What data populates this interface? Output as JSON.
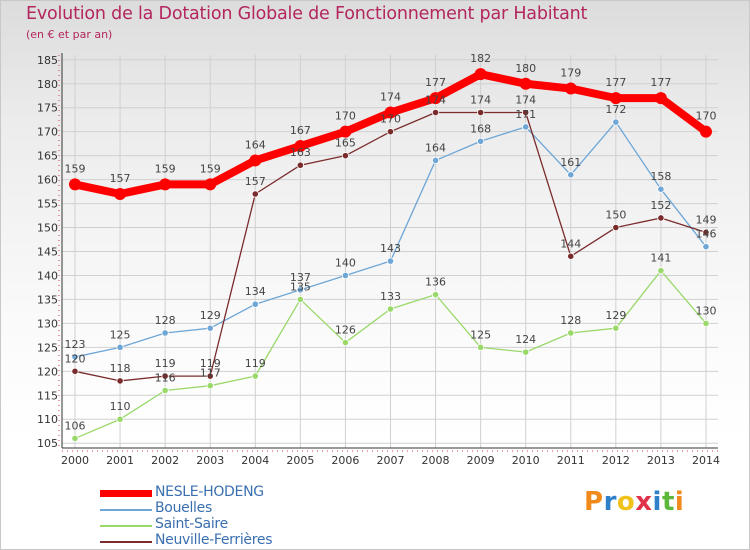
{
  "header": {
    "title": "Evolution de la Dotation Globale de Fonctionnement par Habitant",
    "subtitle": "(en € et par an)"
  },
  "chart_data": {
    "type": "line",
    "title": "Evolution de la Dotation Globale de Fonctionnement par Habitant",
    "subtitle": "(en € et par an)",
    "xlabel": "",
    "ylabel": "",
    "ylim": [
      104,
      186
    ],
    "yticks": [
      105,
      110,
      115,
      120,
      125,
      130,
      135,
      140,
      145,
      150,
      155,
      160,
      165,
      170,
      175,
      180,
      185
    ],
    "grid": true,
    "legend_position": "bottom-left",
    "x": [
      "2000",
      "2001",
      "2002",
      "2003",
      "2004",
      "2005",
      "2006",
      "2007",
      "2008",
      "2009",
      "2010",
      "2011",
      "2012",
      "2013",
      "2014"
    ],
    "series": [
      {
        "name": "NESLE-HODENG",
        "color": "#ff0000",
        "values": [
          159,
          157,
          159,
          159,
          164,
          167,
          170,
          174,
          177,
          182,
          180,
          179,
          177,
          177,
          170
        ]
      },
      {
        "name": "Bouelles",
        "color": "#6ea6d6",
        "values": [
          123,
          125,
          128,
          129,
          134,
          137,
          140,
          143,
          164,
          168,
          171,
          161,
          172,
          158,
          146
        ]
      },
      {
        "name": "Saint-Saire",
        "color": "#9ad86a",
        "values": [
          106,
          110,
          116,
          117,
          119,
          135,
          126,
          133,
          136,
          125,
          124,
          128,
          129,
          141,
          130
        ]
      },
      {
        "name": "Neuville-Ferrières",
        "color": "#7a2b2b",
        "values": [
          120,
          118,
          119,
          119,
          157,
          163,
          165,
          170,
          174,
          174,
          174,
          144,
          150,
          152,
          149
        ]
      }
    ]
  },
  "legend": {
    "items": [
      "NESLE-HODENG",
      "Bouelles",
      "Saint-Saire",
      "Neuville-Ferrières"
    ]
  },
  "logo": {
    "letters": [
      "P",
      "r",
      "o",
      "x",
      "i",
      "t",
      "i"
    ],
    "colors": [
      "#f08a1c",
      "#2f80c8",
      "#f0c21c",
      "#e0304a",
      "#2f80c8",
      "#5cb83a",
      "#f08a1c"
    ]
  }
}
